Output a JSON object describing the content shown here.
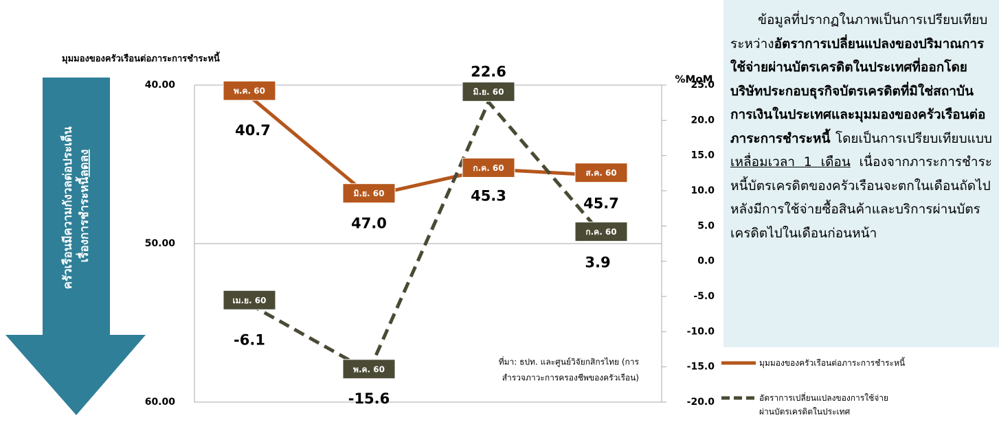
{
  "chart_data": {
    "type": "line",
    "y_axis_title": "มุมมองของครัวเรือนต่อภาระการชำระหนี้",
    "y2_axis_title": "%MoM",
    "ylim": [
      40,
      60
    ],
    "y_inverted": true,
    "yticks": [
      {
        "value": 40,
        "label": "40.00"
      },
      {
        "value": 50,
        "label": "50.00"
      },
      {
        "value": 60,
        "label": "60.00"
      }
    ],
    "y2lim": [
      -20,
      25
    ],
    "y2ticks": [
      {
        "value": 25,
        "label": "25.0"
      },
      {
        "value": 20,
        "label": "20.0"
      },
      {
        "value": 15,
        "label": "15.0"
      },
      {
        "value": 10,
        "label": "10.0"
      },
      {
        "value": 5,
        "label": "5.0"
      },
      {
        "value": 0,
        "label": "0.0"
      },
      {
        "value": -5,
        "label": "-5.0"
      },
      {
        "value": -10,
        "label": "-10.0"
      },
      {
        "value": -15,
        "label": "-15.0"
      },
      {
        "value": -20,
        "label": "-20.0"
      }
    ],
    "grid": true,
    "series": [
      {
        "name": "มุมมองของครัวเรือนต่อภาระการชำระหนี้",
        "color": "#b5561c",
        "line_style": "solid",
        "axis": "y",
        "values": [
          40.7,
          47.0,
          45.3,
          45.7
        ],
        "value_labels": [
          "40.7",
          "47.0",
          "45.3",
          "45.7"
        ],
        "point_labels": [
          "พ.ค. 60",
          "มิ.ย. 60",
          "ก.ค. 60",
          "ส.ค. 60"
        ]
      },
      {
        "name": "อัตราการเปลี่ยนแปลงของการใช้จ่ายผ่านบัตรเครดิตในประเทศ",
        "color": "#4a4a35",
        "line_style": "dashed",
        "axis": "y2",
        "values": [
          -6.1,
          -15.6,
          22.6,
          3.9
        ],
        "value_labels": [
          "-6.1",
          "-15.6",
          "22.6",
          "3.9"
        ],
        "point_labels": [
          "เม.ย. 60",
          "พ.ค. 60",
          "มิ.ย. 60",
          "ก.ค. 60"
        ]
      }
    ],
    "source": [
      "ที่มา: ธปท. และศูนย์วิจัยกสิกรไทย (การ",
      "สำรวจภาวะการครองชีพของครัวเรือน)"
    ],
    "arrow_label": {
      "line1": "ครัวเรือนมีความกังวลต่อประเด็น",
      "line2": "เรื่องการชำระหนี้",
      "line2_underlined": "ลดลง"
    },
    "note": [
      {
        "text": "ข้อมูลที่ปรากฏในภาพเป็นการเปรียบเทียบระหว่าง",
        "style": "normal"
      },
      {
        "text": "อัตราการเปลี่ยนแปลงของปริมาณการใช้จ่ายผ่านบัตรเครดิตในประเทศที่ออกโดยบริษัทประกอบธุรกิจบัตรเครดิตที่มิใช่สถาบันการเงินในประเทศและมุมมองของครัวเรือนต่อภาระการชำระหนี้",
        "style": "bold"
      },
      {
        "text": " โดยเป็นการเปรียบเทียบแบบ",
        "style": "normal"
      },
      {
        "text": "เหลื่อมเวลา 1 เดือน",
        "style": "underline"
      },
      {
        "text": " เนื่องจากภาระการชำระหนี้บัตรเครดิตของครัวเรือนจะตกในเดือนถัดไปหลังมีการใช้จ่ายซื้อสินค้าและบริการผ่านบัตรเครดิตไปในเดือนก่อนหน้า",
        "style": "normal"
      }
    ]
  }
}
